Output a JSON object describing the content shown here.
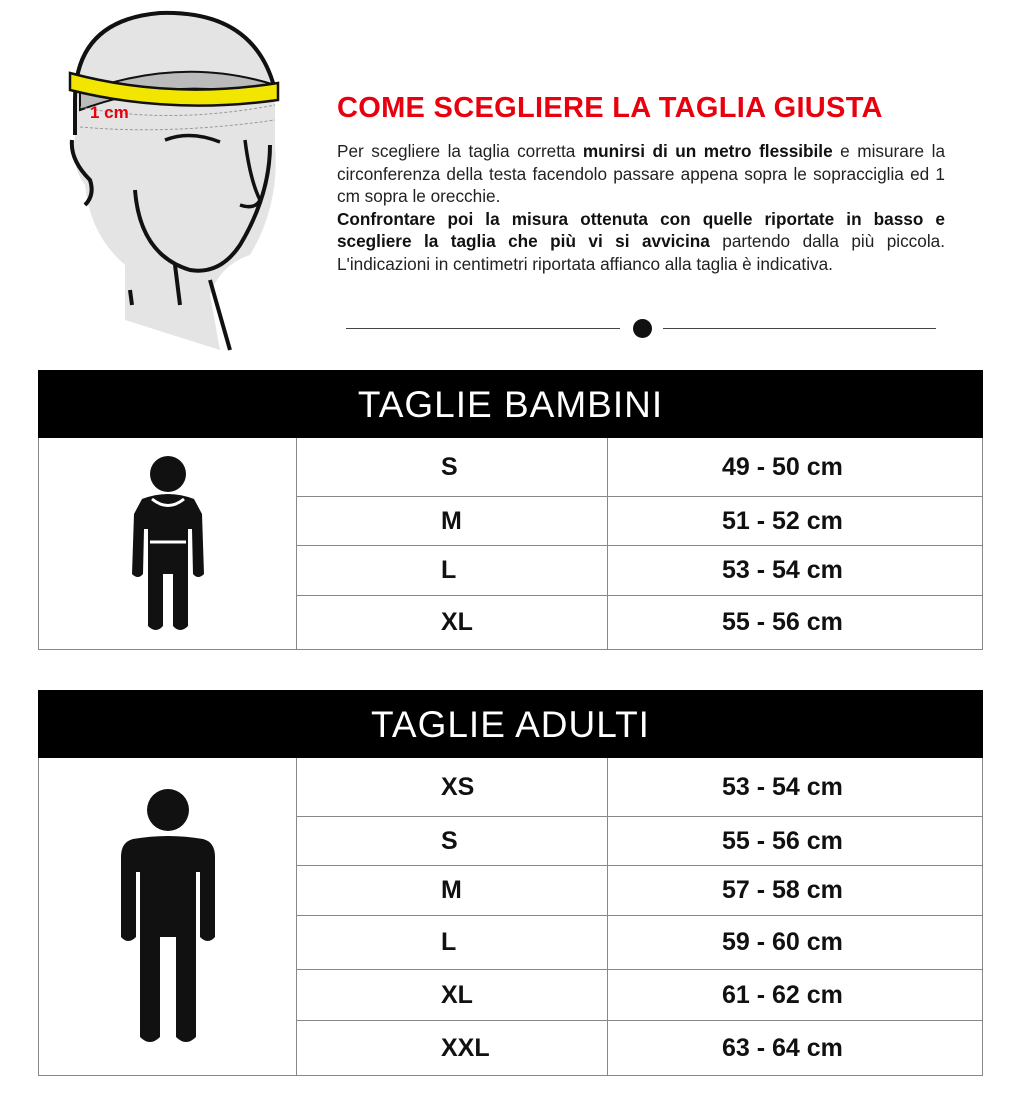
{
  "illustration": {
    "label": "1 cm"
  },
  "header": {
    "title": "COME SCEGLIERE LA TAGLIA GIUSTA",
    "intro": {
      "p1": "Per scegliere la taglia corretta ",
      "b1": "munirsi di un metro flessibile",
      "p2": " e misurare la circonferenza della testa facendolo passare appena sopra le sopracciglia ed 1 cm sopra le orecchie.",
      "b2": "Confrontare poi la misura ottenuta con quelle riportate in basso e scegliere la taglia che più vi si avvicina",
      "p3": " partendo dalla più piccola. L'indicazioni in centimetri riportata affianco alla taglia è indicativa."
    }
  },
  "kids": {
    "title": "TAGLIE BAMBINI",
    "icon": "child-icon",
    "rows": [
      {
        "size": "S",
        "range": "49 - 50 cm"
      },
      {
        "size": "M",
        "range": "51 - 52 cm"
      },
      {
        "size": "L",
        "range": "53 - 54 cm"
      },
      {
        "size": "XL",
        "range": "55 - 56 cm"
      }
    ]
  },
  "adults": {
    "title": "TAGLIE ADULTI",
    "icon": "adult-icon",
    "rows": [
      {
        "size": "XS",
        "range": "53 - 54 cm"
      },
      {
        "size": "S",
        "range": "55 - 56 cm"
      },
      {
        "size": "M",
        "range": "57 - 58 cm"
      },
      {
        "size": "L",
        "range": "59 - 60 cm"
      },
      {
        "size": "XL",
        "range": "61 - 62 cm"
      },
      {
        "size": "XXL",
        "range": "63 - 64 cm"
      }
    ]
  },
  "colors": {
    "accent": "#e8000e",
    "tape": "#f2e600",
    "header_bg": "#000000"
  }
}
